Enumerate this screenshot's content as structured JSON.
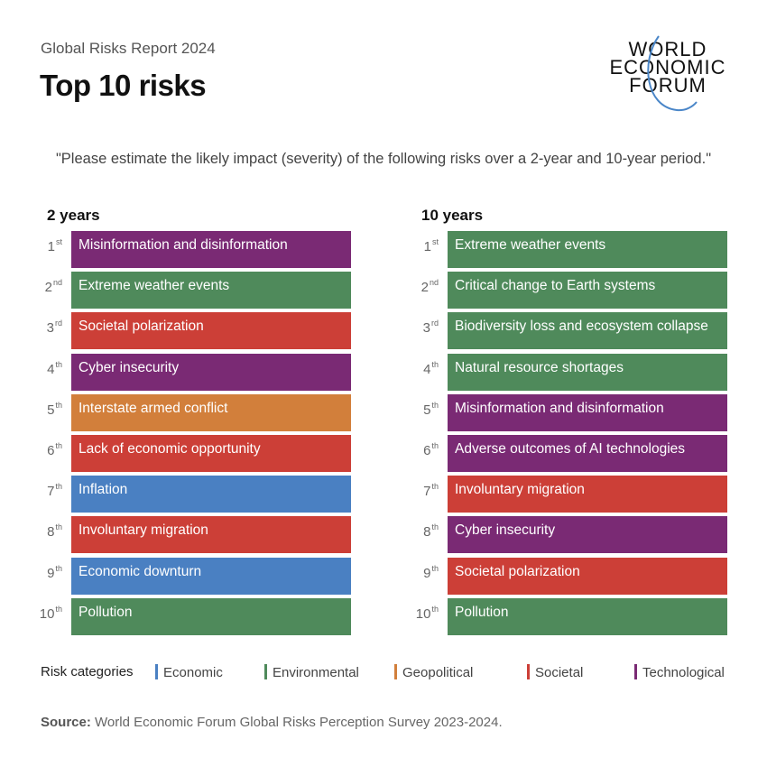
{
  "report_label": "Global Risks Report 2024",
  "title": "Top 10 risks",
  "logo": {
    "text": [
      "WORLD",
      "ECONOMIC",
      "FORUM"
    ],
    "arc_color": "#4a86c8"
  },
  "question": "\"Please estimate the likely impact (severity) of the following risks over a 2-year and 10-year period.\"",
  "colors": {
    "Economic": "#4a80c2",
    "Environmental": "#4f8a5b",
    "Geopolitical": "#d27f3b",
    "Societal": "#cc3f37",
    "Technological": "#7a2a74"
  },
  "chart_data": [
    {
      "type": "table",
      "title": "2 years",
      "ranks": [
        {
          "n": "1",
          "s": "st"
        },
        {
          "n": "2",
          "s": "nd"
        },
        {
          "n": "3",
          "s": "rd"
        },
        {
          "n": "4",
          "s": "th"
        },
        {
          "n": "5",
          "s": "th"
        },
        {
          "n": "6",
          "s": "th"
        },
        {
          "n": "7",
          "s": "th"
        },
        {
          "n": "8",
          "s": "th"
        },
        {
          "n": "9",
          "s": "th"
        },
        {
          "n": "10",
          "s": "th"
        }
      ],
      "risks": [
        {
          "name": "Misinformation and disinformation",
          "category": "Technological"
        },
        {
          "name": "Extreme weather events",
          "category": "Environmental"
        },
        {
          "name": "Societal polarization",
          "category": "Societal"
        },
        {
          "name": "Cyber insecurity",
          "category": "Technological"
        },
        {
          "name": "Interstate armed conflict",
          "category": "Geopolitical"
        },
        {
          "name": "Lack of economic opportunity",
          "category": "Societal"
        },
        {
          "name": "Inflation",
          "category": "Economic"
        },
        {
          "name": "Involuntary migration",
          "category": "Societal"
        },
        {
          "name": "Economic downturn",
          "category": "Economic"
        },
        {
          "name": "Pollution",
          "category": "Environmental"
        }
      ]
    },
    {
      "type": "table",
      "title": "10 years",
      "ranks": [
        {
          "n": "1",
          "s": "st"
        },
        {
          "n": "2",
          "s": "nd"
        },
        {
          "n": "3",
          "s": "rd"
        },
        {
          "n": "4",
          "s": "th"
        },
        {
          "n": "5",
          "s": "th"
        },
        {
          "n": "6",
          "s": "th"
        },
        {
          "n": "7",
          "s": "th"
        },
        {
          "n": "8",
          "s": "th"
        },
        {
          "n": "9",
          "s": "th"
        },
        {
          "n": "10",
          "s": "th"
        }
      ],
      "risks": [
        {
          "name": "Extreme weather events",
          "category": "Environmental"
        },
        {
          "name": "Critical change to Earth systems",
          "category": "Environmental"
        },
        {
          "name": "Biodiversity loss and ecosystem collapse",
          "category": "Environmental"
        },
        {
          "name": "Natural resource shortages",
          "category": "Environmental"
        },
        {
          "name": "Misinformation and disinformation",
          "category": "Technological"
        },
        {
          "name": "Adverse outcomes of AI technologies",
          "category": "Technological"
        },
        {
          "name": "Involuntary migration",
          "category": "Societal"
        },
        {
          "name": "Cyber insecurity",
          "category": "Technological"
        },
        {
          "name": "Societal polarization",
          "category": "Societal"
        },
        {
          "name": "Pollution",
          "category": "Environmental"
        }
      ]
    }
  ],
  "legend": {
    "label": "Risk categories",
    "items": [
      "Economic",
      "Environmental",
      "Geopolitical",
      "Societal",
      "Technological"
    ]
  },
  "source": {
    "label": "Source:",
    "text": " World Economic Forum Global Risks Perception Survey 2023-2024."
  }
}
